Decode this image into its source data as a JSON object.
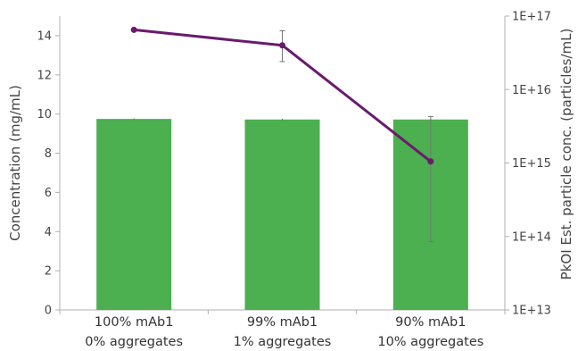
{
  "chart_data": {
    "type": "bar",
    "categories": [
      [
        "100% mAb1",
        "0% aggregates"
      ],
      [
        "99% mAb1",
        "1% aggregates"
      ],
      [
        "90% mAb1",
        "10% aggregates"
      ]
    ],
    "series": [
      {
        "type": "bar",
        "axis": "left",
        "values": [
          9.75,
          9.72,
          9.72
        ],
        "error": [
          0.03,
          0.03,
          0.03
        ],
        "color": "#4caf50"
      },
      {
        "type": "line",
        "axis": "right",
        "values": [
          6.5e+16,
          4e+16,
          1050000000000000.0
        ],
        "error_low": [
          0,
          2.4e+16,
          85000000000000.0
        ],
        "error_high": [
          0,
          6.3e+16,
          4300000000000000.0
        ],
        "color": "#6a1b6e"
      }
    ],
    "ylabel": "Concentration (mg/mL)",
    "y2label": "PkOI Est. particle conc. (particles/mL)",
    "ylim": [
      0,
      15
    ],
    "yticks": [
      0,
      2,
      4,
      6,
      8,
      10,
      12,
      14
    ],
    "y2lim": [
      10000000000000.0,
      1e+17
    ],
    "y2scale": "log",
    "y2ticks": [
      10000000000000.0,
      100000000000000.0,
      1000000000000000.0,
      1e+16,
      1e+17
    ],
    "y2ticklabels": [
      "1E+13",
      "1E+14",
      "1E+15",
      "1E+16",
      "1E+17"
    ],
    "grid": false
  }
}
